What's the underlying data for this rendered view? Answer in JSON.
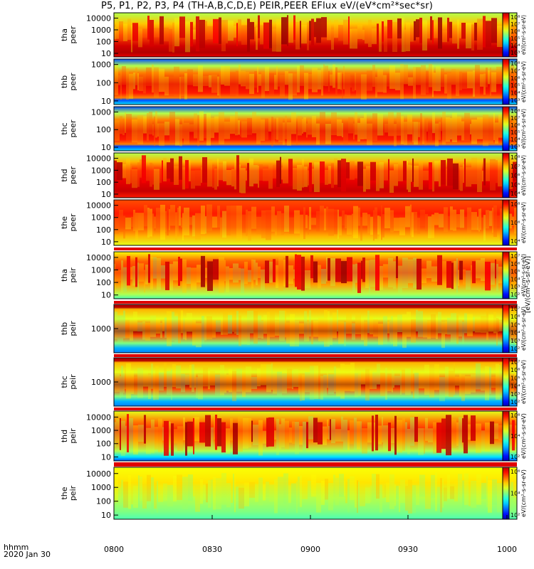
{
  "title": "P5, P1, P2, P3, P4 (TH-A,B,C,D,E) PEIR,PEER EFlux eV/(eV*cm²*sec*sr)",
  "time_axis": {
    "label": "hhmm",
    "date": "2020 Jan 30",
    "ticks": [
      "0800",
      "0830",
      "0900",
      "0930",
      "1000"
    ]
  },
  "colorbar_units": "[eV/(cm²-s-sr-eV)]",
  "colorbar_units_short": "eV/(cm²-s-sr-eV)",
  "colors": {
    "frame": "#000000",
    "red": "#e00000"
  },
  "chart_data": [
    {
      "type": "heatmap",
      "ylabel": "tha\npeer",
      "yticks": [
        "10000",
        "1000",
        "100",
        "10"
      ],
      "cbar_ticks": [
        "10⁸",
        "10⁷",
        "10⁶",
        "10⁵",
        "10⁴",
        "10³"
      ],
      "style": "peer_a"
    },
    {
      "type": "heatmap",
      "ylabel": "thb\npeer",
      "yticks": [
        "1000",
        "100",
        "10"
      ],
      "cbar_ticks": [
        "10⁸",
        "10⁷",
        "10⁶",
        "10⁵",
        "10⁴",
        "10³"
      ],
      "style": "peer_bc"
    },
    {
      "type": "heatmap",
      "ylabel": "thc\npeer",
      "yticks": [
        "1000",
        "100",
        "10"
      ],
      "cbar_ticks": [
        "10⁸",
        "10⁷",
        "10⁶",
        "10⁵",
        "10⁴",
        "10³"
      ],
      "style": "peer_bc"
    },
    {
      "type": "heatmap",
      "ylabel": "thd\npeer",
      "yticks": [
        "10000",
        "1000",
        "100",
        "10"
      ],
      "cbar_ticks": [
        "10⁸",
        "10⁷",
        "10⁶",
        "10⁵",
        "10⁴"
      ],
      "style": "peer_d"
    },
    {
      "type": "heatmap",
      "ylabel": "the\npeer",
      "yticks": [
        "10000",
        "1000",
        "100",
        "10"
      ],
      "cbar_ticks": [
        "10⁸",
        "10⁶",
        "10⁴"
      ],
      "style": "peer_e"
    },
    {
      "type": "heatmap",
      "ylabel": "tha\npeir",
      "yticks": [
        "10000",
        "1000",
        "100",
        "10"
      ],
      "cbar_ticks": [
        "10⁷",
        "10⁶",
        "10⁵",
        "10⁴",
        "10³",
        "10²"
      ],
      "style": "peir_a"
    },
    {
      "type": "heatmap",
      "ylabel": "thb\npeir",
      "yticks": [
        "1000"
      ],
      "cbar_ticks": [
        "10⁷",
        "10⁶",
        "10⁵",
        "10⁴",
        "10³",
        "10²"
      ],
      "style": "peir_bc"
    },
    {
      "type": "heatmap",
      "ylabel": "thc\npeir",
      "yticks": [
        "1000"
      ],
      "cbar_ticks": [
        "10⁷",
        "10⁶",
        "10⁵",
        "10⁴",
        "10³",
        "10²"
      ],
      "style": "peir_bc"
    },
    {
      "type": "heatmap",
      "ylabel": "thd\npeir",
      "yticks": [
        "10000",
        "1000",
        "100",
        "10"
      ],
      "cbar_ticks": [
        "10⁶",
        "10⁴",
        "10²"
      ],
      "style": "peir_d"
    },
    {
      "type": "heatmap",
      "ylabel": "the\npeir",
      "yticks": [
        "10000",
        "1000",
        "100",
        "10"
      ],
      "cbar_ticks": [
        "10⁶",
        "10⁴",
        "10²"
      ],
      "style": "peir_e"
    }
  ]
}
